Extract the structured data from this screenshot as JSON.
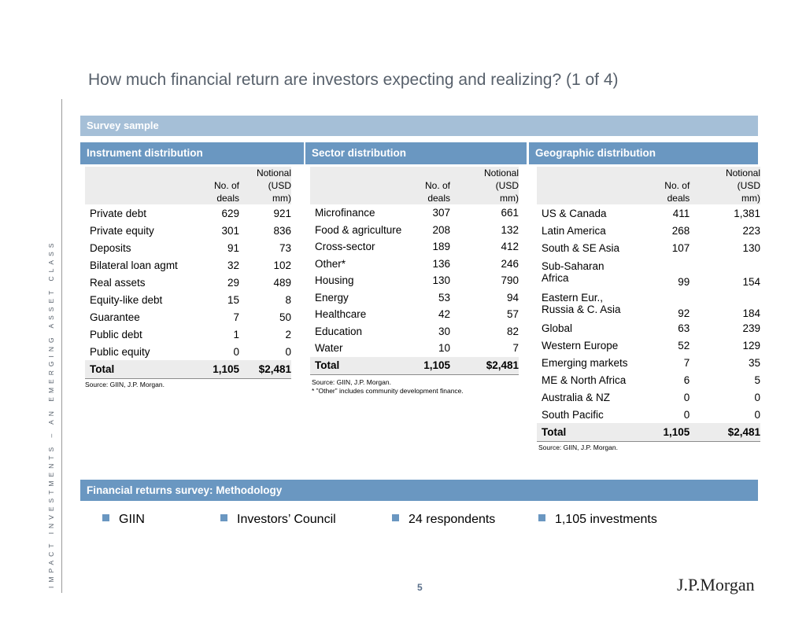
{
  "title": "How much financial return are investors expecting and realizing? (1 of 4)",
  "side_label": "IMPACT INVESTMENTS – AN EMERGING ASSET CLASS",
  "survey_bar": "Survey sample",
  "headers": {
    "deals": "No. of\ndeals",
    "notional": "Notional\n(USD\nmm)"
  },
  "instrument": {
    "title": "Instrument distribution",
    "rows": [
      {
        "name": "Private debt",
        "deals": "629",
        "notional": "921"
      },
      {
        "name": "Private equity",
        "deals": "301",
        "notional": "836"
      },
      {
        "name": "Deposits",
        "deals": "91",
        "notional": "73"
      },
      {
        "name": "Bilateral loan agmt",
        "deals": "32",
        "notional": "102"
      },
      {
        "name": "Real assets",
        "deals": "29",
        "notional": "489"
      },
      {
        "name": "Equity-like debt",
        "deals": "15",
        "notional": "8"
      },
      {
        "name": "Guarantee",
        "deals": "7",
        "notional": "50"
      },
      {
        "name": "Public debt",
        "deals": "1",
        "notional": "2"
      },
      {
        "name": "Public equity",
        "deals": "0",
        "notional": "0"
      }
    ],
    "total": {
      "name": "Total",
      "deals": "1,105",
      "notional": "$2,481"
    },
    "source": "Source: GIIN, J.P. Morgan."
  },
  "sector": {
    "title": "Sector distribution",
    "rows": [
      {
        "name": "Microfinance",
        "deals": "307",
        "notional": "661"
      },
      {
        "name": "Food & agriculture",
        "deals": "208",
        "notional": "132"
      },
      {
        "name": "Cross-sector",
        "deals": "189",
        "notional": "412"
      },
      {
        "name": "Other*",
        "deals": "136",
        "notional": "246"
      },
      {
        "name": "Housing",
        "deals": "130",
        "notional": "790"
      },
      {
        "name": "Energy",
        "deals": "53",
        "notional": "94"
      },
      {
        "name": "Healthcare",
        "deals": "42",
        "notional": "57"
      },
      {
        "name": "Education",
        "deals": "30",
        "notional": "82"
      },
      {
        "name": "Water",
        "deals": "10",
        "notional": "7"
      }
    ],
    "total": {
      "name": "Total",
      "deals": "1,105",
      "notional": "$2,481"
    },
    "source": "Source: GIIN, J.P. Morgan.",
    "footnote": "* ”Other” includes community development finance."
  },
  "geographic": {
    "title": "Geographic distribution",
    "rows": [
      {
        "name": "US & Canada",
        "deals": "411",
        "notional": "1,381"
      },
      {
        "name": "Latin America",
        "deals": "268",
        "notional": "223"
      },
      {
        "name": "South & SE Asia",
        "deals": "107",
        "notional": "130"
      },
      {
        "name": "Sub-Saharan\nAfrica",
        "deals": "99",
        "notional": "154"
      },
      {
        "name": "Eastern Eur.,\nRussia & C. Asia",
        "deals": "92",
        "notional": "184"
      },
      {
        "name": "Global",
        "deals": "63",
        "notional": "239"
      },
      {
        "name": "Western Europe",
        "deals": "52",
        "notional": "129"
      },
      {
        "name": "Emerging markets",
        "deals": "7",
        "notional": "35"
      },
      {
        "name": "ME & North Africa",
        "deals": "6",
        "notional": "5"
      },
      {
        "name": "Australia & NZ",
        "deals": "0",
        "notional": "0"
      },
      {
        "name": "South Pacific",
        "deals": "0",
        "notional": "0"
      }
    ],
    "total": {
      "name": "Total",
      "deals": "1,105",
      "notional": "$2,481"
    },
    "source": "Source: GIIN, J.P. Morgan."
  },
  "methodology_bar": "Financial returns survey: Methodology",
  "bullets": [
    "GIIN",
    "Investors’ Council",
    "24 respondents",
    "1,105 investments"
  ],
  "page_number": "5",
  "logo": "J.P.Morgan",
  "colors": {
    "bar_dark": "#6a97c1",
    "bar_light": "#a5bfd7",
    "header_bg": "#ececec",
    "title": "#57606b"
  }
}
